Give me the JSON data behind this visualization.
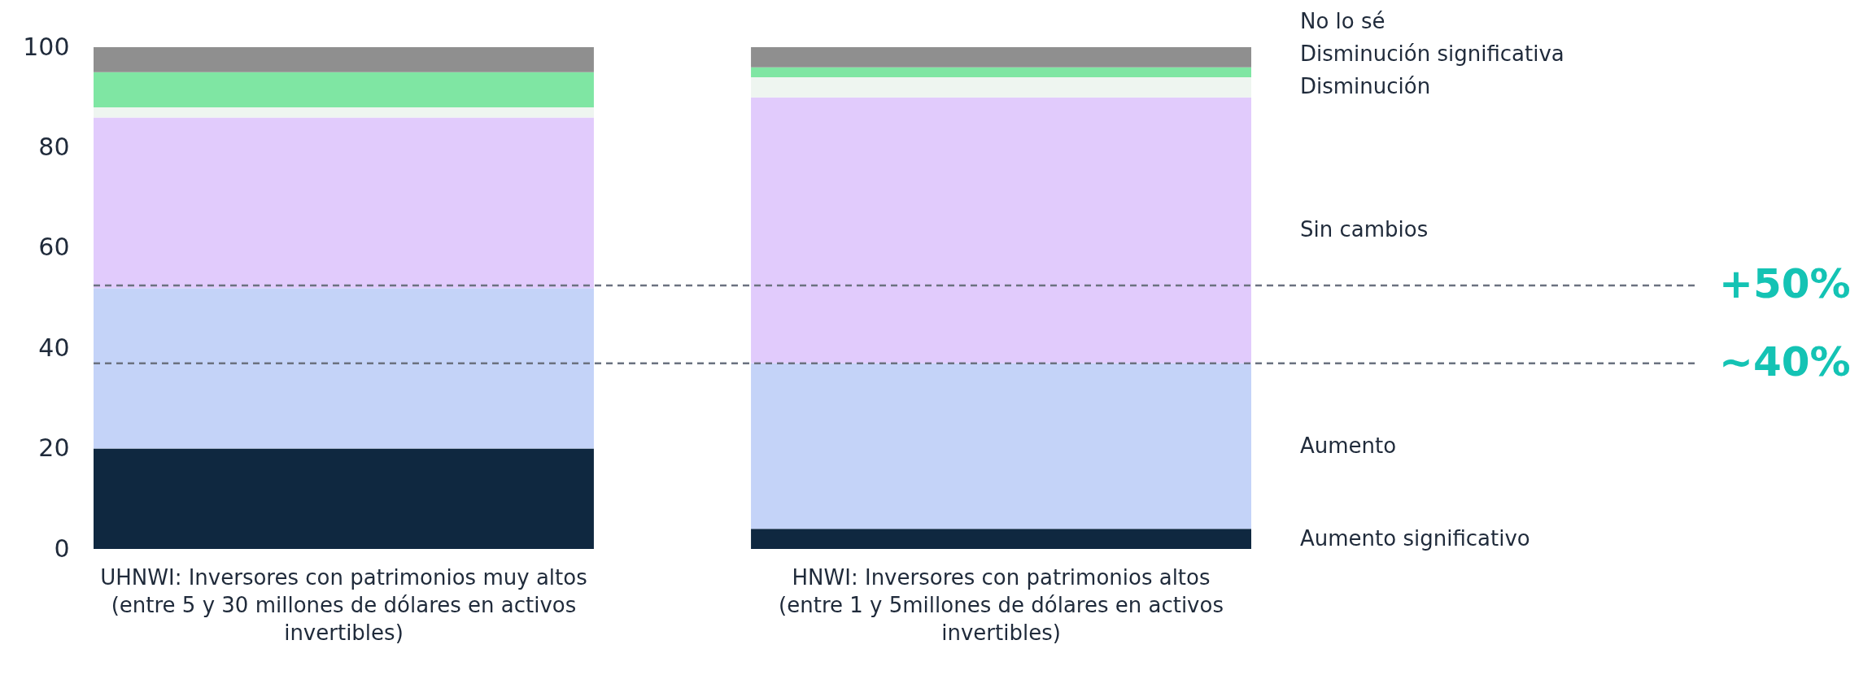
{
  "chart_data": {
    "type": "bar",
    "stacked": true,
    "categories": [
      "UHNWI: Inversores con patrimonios muy altos (entre 5 y 30 millones de dólares en activos invertibles)",
      "HNWI: Inversores con patrimonios altos (entre 1 y 5millones de dólares en activos invertibles)"
    ],
    "series": [
      {
        "name": "Aumento significativo",
        "color": "#0f2840",
        "values": [
          20,
          4
        ]
      },
      {
        "name": "Aumento",
        "color": "#c4d3f8",
        "values": [
          32,
          33
        ]
      },
      {
        "name": "Sin cambios",
        "color": "#e1cbfc",
        "values": [
          34,
          53
        ]
      },
      {
        "name": "Disminución",
        "color": "#eef5f0",
        "values": [
          2,
          4
        ]
      },
      {
        "name": "Disminución significativa",
        "color": "#7fe6a3",
        "values": [
          7,
          2
        ]
      },
      {
        "name": "No lo sé",
        "color": "#8f8f8f",
        "values": [
          5,
          4
        ]
      }
    ],
    "ylim": [
      0,
      100
    ],
    "yticks": [
      0,
      20,
      40,
      60,
      80,
      100
    ],
    "grid": false,
    "ref_lines": [
      {
        "axis": "y",
        "value": 52.5,
        "color": "#6b7280",
        "line_style": "dashed"
      },
      {
        "axis": "y",
        "value": 37,
        "color": "#6b7280",
        "line_style": "dashed"
      }
    ],
    "annotations": [
      "+50%",
      "~40%"
    ]
  }
}
